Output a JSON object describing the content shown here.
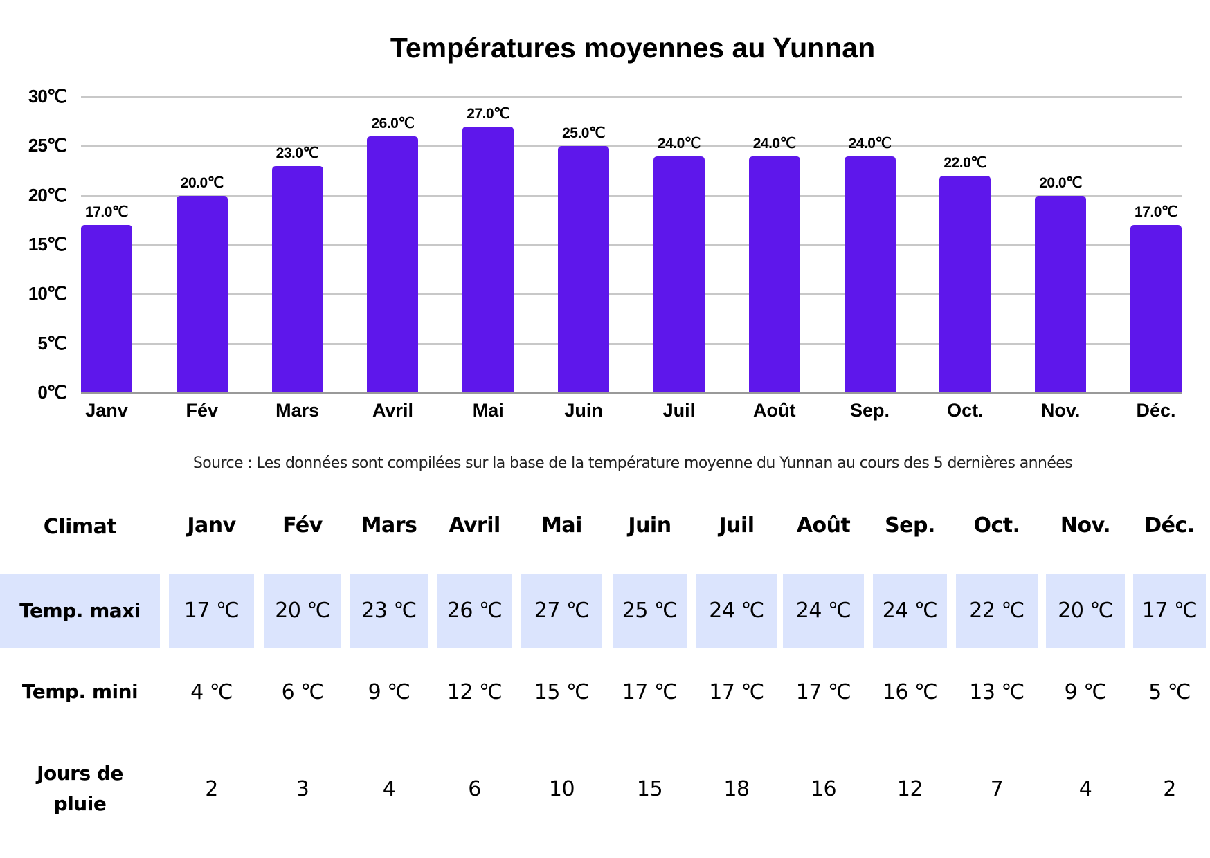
{
  "title": "Températures moyennes au Yunnan",
  "source": "Source : Les données sont compilées sur la base de la température moyenne du Yunnan au cours des 5 dernières années",
  "colors": {
    "bar": "#5e17eb",
    "band": "#dbe4fd",
    "grid": "#c8c8c8"
  },
  "chart_data": {
    "type": "bar",
    "title": "Températures moyennes au Yunnan",
    "xlabel": "",
    "ylabel": "",
    "ylim": [
      0,
      30
    ],
    "yticks": [
      "0℃",
      "5℃",
      "10℃",
      "15℃",
      "20℃",
      "25℃",
      "30℃"
    ],
    "grid": true,
    "legend": "none",
    "categories": [
      "Janv",
      "Fév",
      "Mars",
      "Avril",
      "Mai",
      "Juin",
      "Juil",
      "Août",
      "Sep.",
      "Oct.",
      "Nov.",
      "Déc."
    ],
    "values": [
      17,
      20,
      23,
      26,
      27,
      25,
      24,
      24,
      24,
      22,
      20,
      17
    ],
    "data_labels": [
      "17.0℃",
      "20.0℃",
      "23.0℃",
      "26.0℃",
      "27.0℃",
      "25.0℃",
      "24.0℃",
      "24.0℃",
      "24.0℃",
      "22.0℃",
      "20.0℃",
      "17.0℃"
    ]
  },
  "table": {
    "header": [
      "Climat",
      "Janv",
      "Fév",
      "Mars",
      "Avril",
      "Mai",
      "Juin",
      "Juil",
      "Août",
      "Sep.",
      "Oct.",
      "Nov.",
      "Déc."
    ],
    "rows": [
      {
        "label": "Temp. maxi",
        "values": [
          "17 ℃",
          "20 ℃",
          "23 ℃",
          "26 ℃",
          "27 ℃",
          "25 ℃",
          "24 ℃",
          "24 ℃",
          "24 ℃",
          "22 ℃",
          "20 ℃",
          "17 ℃"
        ]
      },
      {
        "label": "Temp. mini",
        "values": [
          "4 ℃",
          "6 ℃",
          "9 ℃",
          "12 ℃",
          "15 ℃",
          "17 ℃",
          "17 ℃",
          "17 ℃",
          "16 ℃",
          "13 ℃",
          "9 ℃",
          "5 ℃"
        ]
      },
      {
        "label": "Jours de pluie",
        "values": [
          "2",
          "3",
          "4",
          "6",
          "10",
          "15",
          "18",
          "16",
          "12",
          "7",
          "4",
          "2"
        ]
      }
    ]
  }
}
